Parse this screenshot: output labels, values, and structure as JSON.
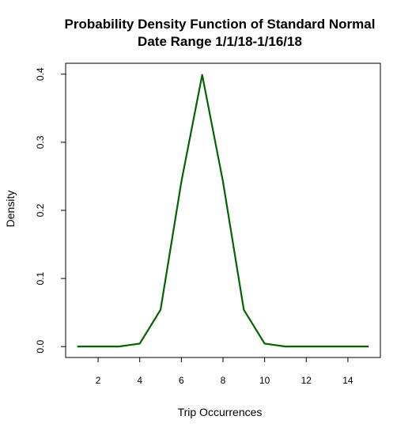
{
  "chart_data": {
    "type": "line",
    "title": "Probability Density Function of Standard Normal",
    "subtitle": "Date Range 1/1/18-1/16/18",
    "xlabel": "Trip Occurrences",
    "ylabel": "Density",
    "xlim": [
      0.44,
      15.56
    ],
    "ylim": [
      -0.016,
      0.416
    ],
    "x_ticks": [
      2,
      4,
      6,
      8,
      10,
      12,
      14
    ],
    "x_tick_labels": [
      "2",
      "4",
      "6",
      "8",
      "10",
      "12",
      "14"
    ],
    "y_ticks": [
      0.0,
      0.1,
      0.2,
      0.3,
      0.4
    ],
    "y_tick_labels": [
      "0.0",
      "0.1",
      "0.2",
      "0.3",
      "0.4"
    ],
    "grid": false,
    "legend": "none",
    "series": [
      {
        "color": "#006400",
        "x": [
          1,
          2,
          3,
          4,
          5,
          6,
          7,
          8,
          9,
          10,
          11,
          12,
          13,
          14,
          15
        ],
        "values": [
          0.0001,
          0.0001,
          0.0001,
          0.0044,
          0.054,
          0.242,
          0.399,
          0.242,
          0.054,
          0.0044,
          0.0001,
          0.0001,
          0.0001,
          0.0001,
          0.0001
        ]
      }
    ]
  }
}
